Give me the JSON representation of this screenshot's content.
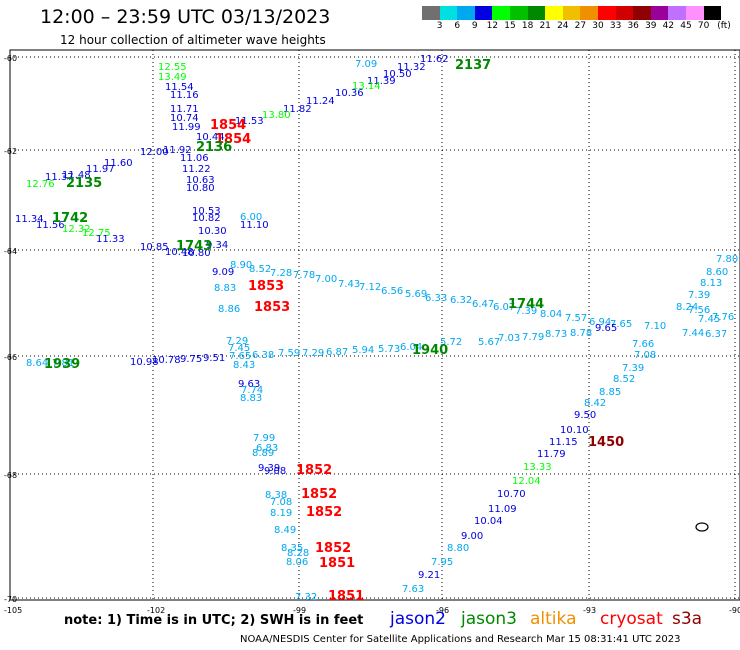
{
  "header": {
    "title": "12:00 – 23:59 UTC 03/13/2023",
    "subtitle": "12 hour collection of altimeter wave heights"
  },
  "colorbar": {
    "colors": [
      "#707070",
      "#00e0e0",
      "#00a8f0",
      "#0000e0",
      "#00ff00",
      "#00c000",
      "#008800",
      "#ffff00",
      "#f0c000",
      "#f09000",
      "#ff0000",
      "#d00000",
      "#900000",
      "#9a009a",
      "#c070ff",
      "#ff90ff",
      "#000000"
    ],
    "ticks": [
      "3",
      "6",
      "9",
      "12",
      "15",
      "18",
      "21",
      "24",
      "27",
      "30",
      "33",
      "36",
      "39",
      "42",
      "45",
      "70"
    ],
    "unit": "(ft)"
  },
  "axes": {
    "lat_labels": [
      "-60",
      "-62",
      "-64",
      "-66",
      "-68",
      "-70"
    ],
    "lon_labels": [
      "-105",
      "-102",
      "-99",
      "-96",
      "-93",
      "-90"
    ]
  },
  "time_labels": [
    {
      "text": "2137",
      "color": "#008800"
    },
    {
      "text": "1854",
      "color": "#ff0000"
    },
    {
      "text": "1854",
      "color": "#ff0000"
    },
    {
      "text": "2136",
      "color": "#008800"
    },
    {
      "text": "2135",
      "color": "#008800"
    },
    {
      "text": "1742",
      "color": "#008800"
    },
    {
      "text": "1743",
      "color": "#008800"
    },
    {
      "text": "1853",
      "color": "#ff0000"
    },
    {
      "text": "1853",
      "color": "#ff0000"
    },
    {
      "text": "1744",
      "color": "#008800"
    },
    {
      "text": "1940",
      "color": "#008800"
    },
    {
      "text": "1939",
      "color": "#008800"
    },
    {
      "text": "1450",
      "color": "#900000"
    },
    {
      "text": "1852",
      "color": "#ff0000"
    },
    {
      "text": "1852",
      "color": "#ff0000"
    },
    {
      "text": "1852",
      "color": "#ff0000"
    },
    {
      "text": "1852",
      "color": "#ff0000"
    },
    {
      "text": "1851",
      "color": "#ff0000"
    },
    {
      "text": "1851",
      "color": "#ff0000"
    }
  ],
  "values": [
    {
      "t": "12.55",
      "c": "#00ff00"
    },
    {
      "t": "13.49",
      "c": "#00ff00"
    },
    {
      "t": "11.54",
      "c": "#0000e0"
    },
    {
      "t": "11.16",
      "c": "#0000e0"
    },
    {
      "t": "11.71",
      "c": "#0000e0"
    },
    {
      "t": "10.74",
      "c": "#0000e0"
    },
    {
      "t": "11.99",
      "c": "#0000e0"
    },
    {
      "t": "10.44",
      "c": "#0000e0"
    },
    {
      "t": "11.92",
      "c": "#0000e0"
    },
    {
      "t": "11.06",
      "c": "#0000e0"
    },
    {
      "t": "11.22",
      "c": "#0000e0"
    },
    {
      "t": "10.63",
      "c": "#0000e0"
    },
    {
      "t": "10.80",
      "c": "#0000e0"
    },
    {
      "t": "12.00",
      "c": "#0000e0"
    },
    {
      "t": "11.60",
      "c": "#0000e0"
    },
    {
      "t": "11.97",
      "c": "#0000e0"
    },
    {
      "t": "11.48",
      "c": "#0000e0"
    },
    {
      "t": "11.37",
      "c": "#0000e0"
    },
    {
      "t": "12.76",
      "c": "#00ff00"
    },
    {
      "t": "11.34",
      "c": "#0000e0"
    },
    {
      "t": "11.56",
      "c": "#0000e0"
    },
    {
      "t": "12.32",
      "c": "#00ff00"
    },
    {
      "t": "12.75",
      "c": "#00ff00"
    },
    {
      "t": "11.33",
      "c": "#0000e0"
    },
    {
      "t": "10.85",
      "c": "#0000e0"
    },
    {
      "t": "10.48",
      "c": "#0000e0"
    },
    {
      "t": "10.53",
      "c": "#0000e0"
    },
    {
      "t": "10.82",
      "c": "#0000e0"
    },
    {
      "t": "10.30",
      "c": "#0000e0"
    },
    {
      "t": "9.34",
      "c": "#0000e0"
    },
    {
      "t": "10.80",
      "c": "#0000e0"
    },
    {
      "t": "9.09",
      "c": "#0000e0"
    },
    {
      "t": "11.53",
      "c": "#0000e0"
    },
    {
      "t": "11.82",
      "c": "#0000e0"
    },
    {
      "t": "11.24",
      "c": "#0000e0"
    },
    {
      "t": "10.36",
      "c": "#0000e0"
    },
    {
      "t": "11.39",
      "c": "#0000e0"
    },
    {
      "t": "10.50",
      "c": "#0000e0"
    },
    {
      "t": "11.62",
      "c": "#0000e0"
    },
    {
      "t": "11.32",
      "c": "#0000e0"
    },
    {
      "t": "13.80",
      "c": "#00ff00"
    },
    {
      "t": "13.14",
      "c": "#00ff00"
    },
    {
      "t": "8.90",
      "c": "#00a8f0"
    },
    {
      "t": "8.52",
      "c": "#00a8f0"
    },
    {
      "t": "7.28",
      "c": "#00a8f0"
    },
    {
      "t": "7.78",
      "c": "#00a8f0"
    },
    {
      "t": "7.00",
      "c": "#00a8f0"
    },
    {
      "t": "7.43",
      "c": "#00a8f0"
    },
    {
      "t": "7.12",
      "c": "#00a8f0"
    },
    {
      "t": "6.56",
      "c": "#00a8f0"
    },
    {
      "t": "5.69",
      "c": "#00a8f0"
    },
    {
      "t": "6.33",
      "c": "#00a8f0"
    },
    {
      "t": "6.32",
      "c": "#00a8f0"
    },
    {
      "t": "6.47",
      "c": "#00a8f0"
    },
    {
      "t": "6.07",
      "c": "#00a8f0"
    },
    {
      "t": "7.39",
      "c": "#00a8f0"
    },
    {
      "t": "8.04",
      "c": "#00a8f0"
    },
    {
      "t": "7.57",
      "c": "#00a8f0"
    },
    {
      "t": "6.94",
      "c": "#00a8f0"
    },
    {
      "t": "7.65",
      "c": "#00a8f0"
    },
    {
      "t": "8.83",
      "c": "#00a8f0"
    },
    {
      "t": "8.86",
      "c": "#00a8f0"
    },
    {
      "t": "7.29",
      "c": "#00a8f0"
    },
    {
      "t": "7.45",
      "c": "#00a8f0"
    },
    {
      "t": "7.65",
      "c": "#00a8f0"
    },
    {
      "t": "6.38",
      "c": "#00a8f0"
    },
    {
      "t": "7.59",
      "c": "#00a8f0"
    },
    {
      "t": "7.29",
      "c": "#00a8f0"
    },
    {
      "t": "6.87",
      "c": "#00a8f0"
    },
    {
      "t": "5.94",
      "c": "#00a8f0"
    },
    {
      "t": "5.73",
      "c": "#00a8f0"
    },
    {
      "t": "6.04",
      "c": "#00a8f0"
    },
    {
      "t": "5.72",
      "c": "#00a8f0"
    },
    {
      "t": "5.67",
      "c": "#00a8f0"
    },
    {
      "t": "7.03",
      "c": "#00a8f0"
    },
    {
      "t": "7.79",
      "c": "#00a8f0"
    },
    {
      "t": "8.73",
      "c": "#00a8f0"
    },
    {
      "t": "8.78",
      "c": "#00a8f0"
    },
    {
      "t": "9.65",
      "c": "#0000e0"
    },
    {
      "t": "8.43",
      "c": "#00a8f0"
    },
    {
      "t": "9.63",
      "c": "#0000e0"
    },
    {
      "t": "7.74",
      "c": "#00a8f0"
    },
    {
      "t": "8.83",
      "c": "#00a8f0"
    },
    {
      "t": "8.64",
      "c": "#00a8f0"
    },
    {
      "t": "7.81",
      "c": "#00a8f0"
    },
    {
      "t": "10.98",
      "c": "#0000e0"
    },
    {
      "t": "10.78",
      "c": "#0000e0"
    },
    {
      "t": "9.75",
      "c": "#0000e0"
    },
    {
      "t": "9.51",
      "c": "#0000e0"
    },
    {
      "t": "8.60",
      "c": "#00a8f0"
    },
    {
      "t": "7.80",
      "c": "#00a8f0"
    },
    {
      "t": "8.13",
      "c": "#00a8f0"
    },
    {
      "t": "7.39",
      "c": "#00a8f0"
    },
    {
      "t": "8.24",
      "c": "#00a8f0"
    },
    {
      "t": "7.76",
      "c": "#00a8f0"
    },
    {
      "t": "7.45",
      "c": "#00a8f0"
    },
    {
      "t": "7.56",
      "c": "#00a8f0"
    },
    {
      "t": "7.10",
      "c": "#00a8f0"
    },
    {
      "t": "7.44",
      "c": "#00a8f0"
    },
    {
      "t": "6.37",
      "c": "#00a8f0"
    },
    {
      "t": "7.66",
      "c": "#00a8f0"
    },
    {
      "t": "7.08",
      "c": "#00a8f0"
    },
    {
      "t": "7.39",
      "c": "#00a8f0"
    },
    {
      "t": "8.52",
      "c": "#00a8f0"
    },
    {
      "t": "8.85",
      "c": "#00a8f0"
    },
    {
      "t": "8.42",
      "c": "#00a8f0"
    },
    {
      "t": "9.50",
      "c": "#0000e0"
    },
    {
      "t": "10.10",
      "c": "#0000e0"
    },
    {
      "t": "11.15",
      "c": "#0000e0"
    },
    {
      "t": "11.79",
      "c": "#0000e0"
    },
    {
      "t": "13.33",
      "c": "#00ff00"
    },
    {
      "t": "12.04",
      "c": "#00ff00"
    },
    {
      "t": "10.70",
      "c": "#0000e0"
    },
    {
      "t": "11.09",
      "c": "#0000e0"
    },
    {
      "t": "10.04",
      "c": "#0000e0"
    },
    {
      "t": "9.00",
      "c": "#0000e0"
    },
    {
      "t": "8.80",
      "c": "#00a8f0"
    },
    {
      "t": "7.95",
      "c": "#00a8f0"
    },
    {
      "t": "9.21",
      "c": "#0000e0"
    },
    {
      "t": "7.63",
      "c": "#00a8f0"
    },
    {
      "t": "7.99",
      "c": "#00a8f0"
    },
    {
      "t": "6.83",
      "c": "#00a8f0"
    },
    {
      "t": "8.89",
      "c": "#00a8f0"
    },
    {
      "t": "9.39",
      "c": "#0000e0"
    },
    {
      "t": "9.08",
      "c": "#0000e0"
    },
    {
      "t": "8.38",
      "c": "#00a8f0"
    },
    {
      "t": "7.08",
      "c": "#00a8f0"
    },
    {
      "t": "8.19",
      "c": "#00a8f0"
    },
    {
      "t": "8.49",
      "c": "#00a8f0"
    },
    {
      "t": "8.35",
      "c": "#00a8f0"
    },
    {
      "t": "8.28",
      "c": "#00a8f0"
    },
    {
      "t": "8.06",
      "c": "#00a8f0"
    },
    {
      "t": "7.32",
      "c": "#00a8f0"
    },
    {
      "t": "7.09",
      "c": "#00a8f0"
    },
    {
      "t": "6.00",
      "c": "#00a8f0"
    },
    {
      "t": "11.10",
      "c": "#0000e0"
    },
    {
      "t": "11.13",
      "c": "#0000e0"
    },
    {
      "t": "11.96",
      "c": "#0000e0"
    }
  ],
  "note": {
    "text": "note: 1) Time is in UTC; 2) SWH is in feet",
    "satellites": [
      {
        "name": "jason2",
        "color": "#0000e0"
      },
      {
        "name": "jason3",
        "color": "#008800"
      },
      {
        "name": "altika",
        "color": "#f09000"
      },
      {
        "name": "cryosat",
        "color": "#ff0000"
      },
      {
        "name": "s3a",
        "color": "#900000"
      }
    ]
  },
  "footer": "NOAA/NESDIS Center for Satellite Applications and Research    Mar 15 08:31:41 UTC 2023"
}
